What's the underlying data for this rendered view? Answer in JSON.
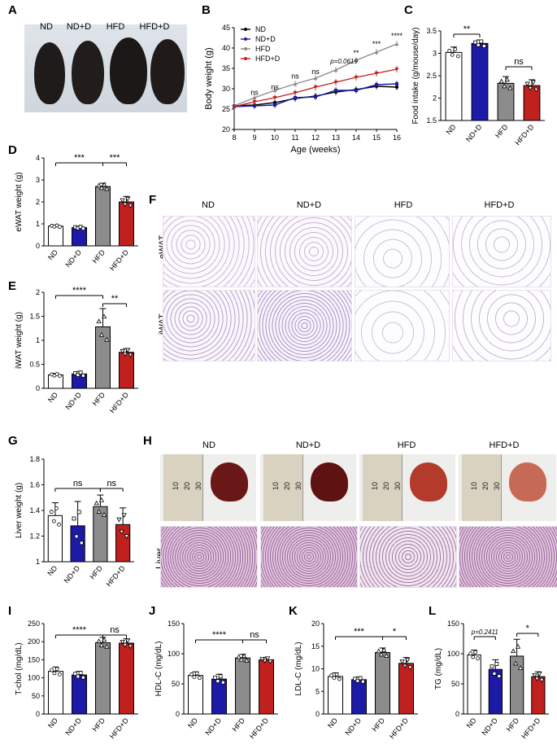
{
  "panels": {
    "A": "A",
    "B": "B",
    "C": "C",
    "D": "D",
    "E": "E",
    "F": "F",
    "G": "G",
    "H": "H",
    "I": "I",
    "J": "J",
    "K": "K",
    "L": "L"
  },
  "groups": [
    "ND",
    "ND+D",
    "HFD",
    "HFD+D"
  ],
  "colors": {
    "ND": "#ffffff",
    "ND+D": "#1b1ba8",
    "HFD": "#8c8c8c",
    "HFD+D": "#c0201e"
  },
  "photo_groups": [
    "ND",
    "ND+D",
    "HFD",
    "HFD+D"
  ],
  "tissue_labels": {
    "eWAT": "eWAT",
    "iWAT": "iWAT",
    "Liver": "Liver"
  },
  "ruler_marks": [
    "10",
    "20",
    "30"
  ],
  "chart_data": [
    {
      "id": "B",
      "type": "line",
      "xlabel": "Age (weeks)",
      "ylabel": "Body weight (g)",
      "x": [
        8,
        9,
        10,
        11,
        12,
        13,
        14,
        15,
        16
      ],
      "xlim": [
        8,
        16
      ],
      "ylim": [
        20,
        45
      ],
      "yticks": [
        20,
        25,
        30,
        35,
        40,
        45
      ],
      "series": [
        {
          "name": "ND",
          "color": "#000000",
          "values": [
            25.8,
            26.0,
            26.6,
            27.6,
            28.2,
            29.2,
            29.8,
            30.6,
            30.4
          ]
        },
        {
          "name": "ND+D",
          "color": "#1b1ba8",
          "values": [
            25.6,
            25.8,
            26.0,
            27.8,
            28.0,
            29.6,
            29.6,
            31.0,
            31.2
          ]
        },
        {
          "name": "HFD",
          "color": "#8c8c8c",
          "values": [
            25.8,
            27.8,
            29.6,
            31.2,
            32.6,
            34.6,
            37.0,
            39.0,
            41.0
          ]
        },
        {
          "name": "HFD+D",
          "color": "#c0201e",
          "values": [
            25.6,
            26.8,
            27.8,
            29.0,
            30.4,
            31.6,
            32.8,
            33.8,
            34.8
          ]
        }
      ],
      "annotations": [
        {
          "x": 9,
          "text": "ns"
        },
        {
          "x": 10,
          "text": "ns"
        },
        {
          "x": 11,
          "text": "ns"
        },
        {
          "x": 12,
          "text": "ns"
        },
        {
          "x": 13.4,
          "text": "p=0.0619"
        },
        {
          "x": 14,
          "text": "**"
        },
        {
          "x": 15,
          "text": "***"
        },
        {
          "x": 16,
          "text": "****"
        }
      ]
    },
    {
      "id": "C",
      "type": "bar",
      "categories": [
        "ND",
        "ND+D",
        "HFD",
        "HFD+D"
      ],
      "values": [
        3.02,
        3.22,
        2.33,
        2.28
      ],
      "errors": [
        0.12,
        0.08,
        0.15,
        0.13
      ],
      "ylabel": "Food intake (g/mouse/day)",
      "ylim": [
        1.5,
        3.5
      ],
      "yticks": [
        1.5,
        2.0,
        2.5,
        3.0,
        3.5
      ],
      "sig": [
        {
          "from": 0,
          "to": 1,
          "text": "**"
        },
        {
          "from": 2,
          "to": 3,
          "text": "ns"
        }
      ]
    },
    {
      "id": "D",
      "type": "bar",
      "categories": [
        "ND",
        "ND+D",
        "HFD",
        "HFD+D"
      ],
      "values": [
        0.9,
        0.83,
        2.7,
        2.0
      ],
      "errors": [
        0.05,
        0.06,
        0.15,
        0.25
      ],
      "ylabel": "eWAT weight (g)",
      "ylim": [
        0,
        4
      ],
      "yticks": [
        0,
        1,
        2,
        3,
        4
      ],
      "sig": [
        {
          "from": 0,
          "to": 2,
          "text": "***"
        },
        {
          "from": 2,
          "to": 3,
          "text": "***"
        }
      ]
    },
    {
      "id": "E",
      "type": "bar",
      "categories": [
        "ND",
        "ND+D",
        "HFD",
        "HFD+D"
      ],
      "values": [
        0.28,
        0.3,
        1.28,
        0.75
      ],
      "errors": [
        0.03,
        0.05,
        0.38,
        0.08
      ],
      "ylabel": "iWAT weight (g)",
      "ylim": [
        0,
        2.0
      ],
      "yticks": [
        0.0,
        0.5,
        1.0,
        1.5,
        2.0
      ],
      "sig": [
        {
          "from": 0,
          "to": 2,
          "text": "****"
        },
        {
          "from": 2,
          "to": 3,
          "text": "**"
        }
      ]
    },
    {
      "id": "G",
      "type": "bar",
      "categories": [
        "ND",
        "ND+D",
        "HFD",
        "HFD+D"
      ],
      "values": [
        1.36,
        1.28,
        1.43,
        1.29
      ],
      "errors": [
        0.1,
        0.19,
        0.09,
        0.13
      ],
      "ylabel": "Liver weight (g)",
      "ylim": [
        1.0,
        1.8
      ],
      "yticks": [
        1.0,
        1.2,
        1.4,
        1.6,
        1.8
      ],
      "sig": [
        {
          "from": 0,
          "to": 2,
          "text": "ns"
        },
        {
          "from": 2,
          "to": 3,
          "text": "ns"
        }
      ]
    },
    {
      "id": "I",
      "type": "bar",
      "categories": [
        "ND",
        "ND+D",
        "HFD",
        "HFD+D"
      ],
      "values": [
        118,
        108,
        197,
        196
      ],
      "errors": [
        12,
        10,
        15,
        12
      ],
      "ylabel": "T-chol (mg/dL)",
      "ylim": [
        0,
        250
      ],
      "yticks": [
        0,
        50,
        100,
        150,
        200,
        250
      ],
      "sig": [
        {
          "from": 0,
          "to": 2,
          "text": "****"
        },
        {
          "from": 2,
          "to": 3,
          "text": "ns"
        }
      ]
    },
    {
      "id": "J",
      "type": "bar",
      "categories": [
        "ND",
        "ND+D",
        "HFD",
        "HFD+D"
      ],
      "values": [
        64,
        58,
        93,
        90
      ],
      "errors": [
        6,
        8,
        6,
        4
      ],
      "ylabel": "HDL-C (mg/dL)",
      "ylim": [
        0,
        150
      ],
      "yticks": [
        0,
        50,
        100,
        150
      ],
      "sig": [
        {
          "from": 0,
          "to": 2,
          "text": "****"
        },
        {
          "from": 2,
          "to": 3,
          "text": "ns"
        }
      ]
    },
    {
      "id": "K",
      "type": "bar",
      "categories": [
        "ND",
        "ND+D",
        "HFD",
        "HFD+D"
      ],
      "values": [
        8.3,
        7.6,
        13.6,
        11.2
      ],
      "errors": [
        0.8,
        0.6,
        1.0,
        1.3
      ],
      "ylabel": "LDL-C (mg/dL)",
      "ylim": [
        0,
        20
      ],
      "yticks": [
        0,
        5,
        10,
        15,
        20
      ],
      "sig": [
        {
          "from": 0,
          "to": 2,
          "text": "***"
        },
        {
          "from": 2,
          "to": 3,
          "text": "*"
        }
      ]
    },
    {
      "id": "L",
      "type": "bar",
      "categories": [
        "ND",
        "ND+D",
        "HFD",
        "HFD+D"
      ],
      "values": [
        98,
        74,
        96,
        62
      ],
      "errors": [
        8,
        16,
        28,
        8
      ],
      "ylabel": "TG (mg/dL)",
      "ylim": [
        0,
        150
      ],
      "yticks": [
        0,
        50,
        100,
        150
      ],
      "sig": [
        {
          "from": 0,
          "to": 1,
          "text": "p=0.2411"
        },
        {
          "from": 2,
          "to": 3,
          "text": "*"
        }
      ]
    }
  ]
}
